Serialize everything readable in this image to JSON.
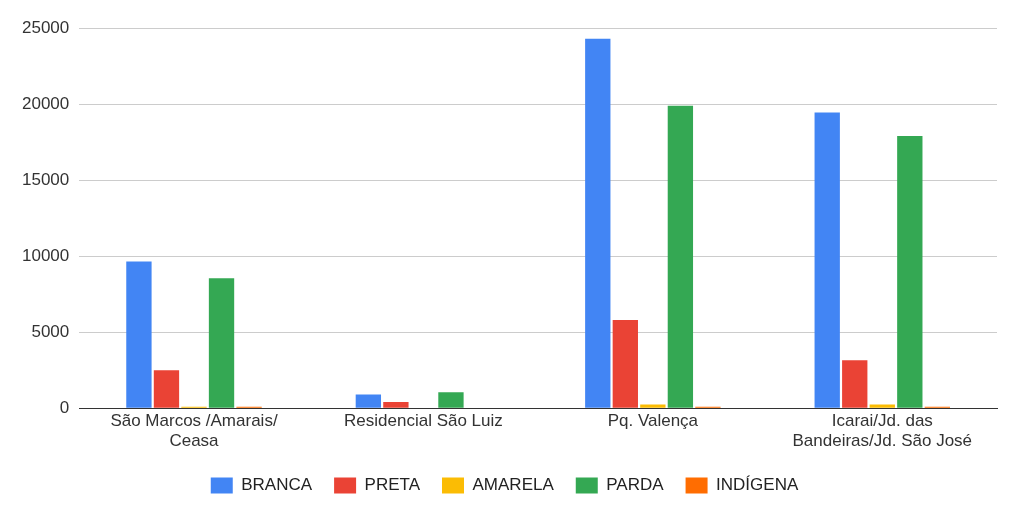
{
  "chart_data": {
    "type": "bar",
    "categories": [
      "São Marcos /Amarais/ Ceasa",
      "Residencial São Luiz",
      "Pq. Valença",
      "Icarai/Jd. das Bandeiras/Jd. São José"
    ],
    "series": [
      {
        "name": "BRANCA",
        "color": "#4285f4",
        "values": [
          9650,
          900,
          24300,
          19450
        ]
      },
      {
        "name": "PRETA",
        "color": "#ea4335",
        "values": [
          2500,
          400,
          5800,
          3150
        ]
      },
      {
        "name": "AMARELA",
        "color": "#fbbc04",
        "values": [
          100,
          0,
          250,
          250
        ]
      },
      {
        "name": "PARDA",
        "color": "#34a853",
        "values": [
          8550,
          1050,
          19900,
          17900
        ]
      },
      {
        "name": "INDÍGENA",
        "color": "#ff6d01",
        "values": [
          100,
          0,
          100,
          100
        ]
      }
    ],
    "ylim": [
      0,
      25000
    ],
    "yticks": [
      0,
      5000,
      10000,
      15000,
      20000,
      25000
    ],
    "grid": "y",
    "legend": "bottom"
  }
}
